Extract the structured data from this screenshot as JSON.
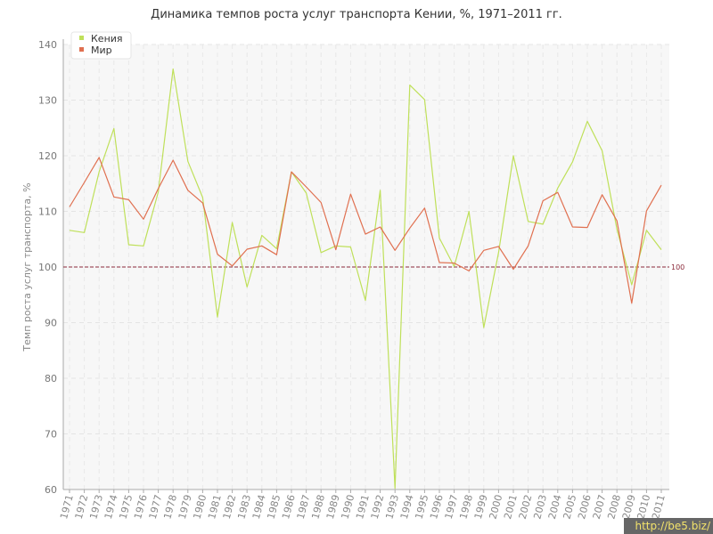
{
  "chart_data": {
    "type": "line",
    "title": "Динамика темпов роста услуг транспорта Кении, %, 1971–2011 гг.",
    "xlabel": "",
    "ylabel": "Темп роста услуг транспорта, %",
    "ylim": [
      60,
      140
    ],
    "yticks": [
      60,
      70,
      80,
      90,
      100,
      110,
      120,
      130,
      140
    ],
    "grid": true,
    "legend_position": "top-left",
    "reference_line": {
      "value": 100,
      "label": "100",
      "color": "#8b2a3a"
    },
    "categories": [
      "1971",
      "1972",
      "1973",
      "1974",
      "1975",
      "1976",
      "1977",
      "1978",
      "1979",
      "1980",
      "1981",
      "1982",
      "1983",
      "1984",
      "1985",
      "1986",
      "1987",
      "1988",
      "1989",
      "1990",
      "1991",
      "1992",
      "1993",
      "1994",
      "1995",
      "1996",
      "1997",
      "1998",
      "1999",
      "2000",
      "2001",
      "2002",
      "2003",
      "2004",
      "2005",
      "2006",
      "2007",
      "2008",
      "2009",
      "2010",
      "2011"
    ],
    "series": [
      {
        "name": "Кения",
        "color": "#bfe05a",
        "values": [
          106.6,
          106.2,
          117.1,
          124.9,
          104.0,
          103.8,
          113.5,
          135.6,
          119.0,
          112.5,
          91.0,
          108.0,
          96.4,
          105.7,
          103.3,
          117.1,
          113.3,
          102.6,
          103.8,
          103.6,
          94.0,
          113.8,
          60.2,
          132.7,
          130.1,
          105.2,
          100.1,
          110.0,
          89.1,
          102.6,
          120.0,
          108.2,
          107.7,
          114.2,
          118.9,
          126.2,
          120.9,
          106.8,
          96.8,
          106.6,
          103.1
        ]
      },
      {
        "name": "Мир",
        "color": "#e07050",
        "values": [
          110.8,
          115.2,
          119.7,
          112.6,
          112.1,
          108.6,
          114.1,
          119.2,
          113.8,
          111.5,
          102.3,
          100.2,
          103.2,
          103.8,
          102.2,
          117.1,
          114.4,
          111.6,
          103.1,
          113.1,
          105.9,
          107.2,
          103.0,
          107.0,
          110.6,
          100.8,
          100.7,
          99.3,
          103.0,
          103.7,
          99.6,
          103.8,
          111.9,
          113.4,
          107.2,
          107.1,
          113.0,
          108.3,
          93.5,
          110.1,
          114.7
        ]
      }
    ]
  },
  "watermark": "http://be5.biz/"
}
